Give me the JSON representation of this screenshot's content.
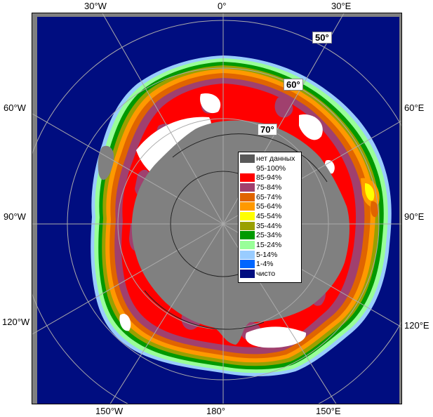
{
  "map": {
    "edge_labels": {
      "top": [
        "30°W",
        "0°",
        "30°E"
      ],
      "left": [
        "60°W",
        "90°W",
        "120°W"
      ],
      "right": [
        "60°E",
        "90°E",
        "120°E"
      ],
      "bottom": [
        "150°W",
        "180°",
        "150°E"
      ]
    },
    "lat_labels": [
      "50°",
      "60°",
      "70°"
    ],
    "colors": {
      "ocean": "#000d80",
      "land": "#808080",
      "frame_bg": "#808080",
      "grid": "#aaaaaa"
    }
  },
  "legend": {
    "items": [
      {
        "label": "нет данных",
        "color": "#595959"
      },
      {
        "label": "95-100%",
        "color": "#ffffff"
      },
      {
        "label": "85-94%",
        "color": "#ff0000"
      },
      {
        "label": "75-84%",
        "color": "#a0406e"
      },
      {
        "label": "65-74%",
        "color": "#e06400"
      },
      {
        "label": "55-64%",
        "color": "#ff9900"
      },
      {
        "label": "45-54%",
        "color": "#ffff00"
      },
      {
        "label": "35-44%",
        "color": "#99a000"
      },
      {
        "label": "25-34%",
        "color": "#009900"
      },
      {
        "label": "15-24%",
        "color": "#99ff99"
      },
      {
        "label": "5-14%",
        "color": "#99ccff"
      },
      {
        "label": "1-4%",
        "color": "#0066ff"
      },
      {
        "label": "чисто",
        "color": "#000d80"
      }
    ]
  }
}
